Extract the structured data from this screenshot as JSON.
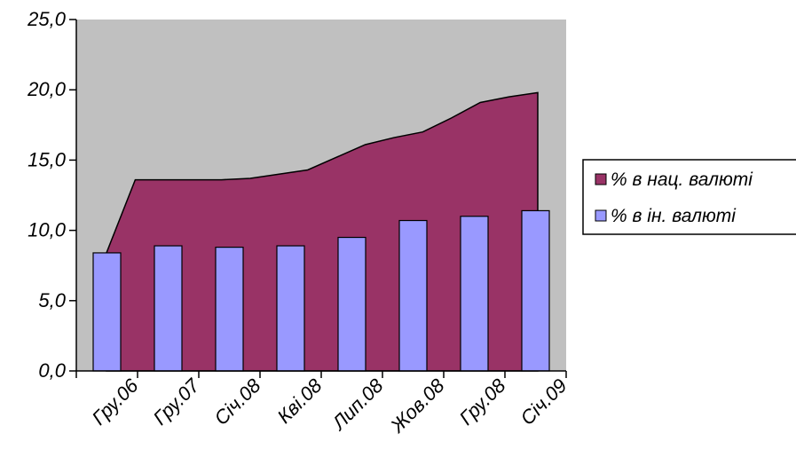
{
  "chart_data": {
    "type": "area",
    "title": "",
    "xlabel": "",
    "ylabel": "",
    "ylim": [
      0,
      25
    ],
    "y_ticks": [
      "0,0",
      "5,0",
      "10,0",
      "15,0",
      "20,0",
      "25,0"
    ],
    "x_tick_labels": [
      "Гру.06",
      "Гру.07",
      "Січ.08",
      "Кві.08",
      "Лип.08",
      "Жов.08",
      "Гру.08",
      "Січ.09"
    ],
    "grid": false,
    "legend_position": "right",
    "plot_background": "#c0c0c0",
    "series": [
      {
        "name": "% в нац. валюті",
        "type": "area",
        "color": "#993366",
        "values": [
          8.4,
          13.6,
          13.6,
          13.6,
          13.6,
          13.7,
          14.0,
          14.3,
          15.2,
          16.1,
          16.6,
          17.0,
          18.0,
          19.1,
          19.5,
          19.8
        ]
      },
      {
        "name": "% в ін. валюті",
        "type": "bar",
        "color": "#9999ff",
        "values": [
          8.4,
          8.9,
          8.8,
          8.9,
          9.5,
          10.7,
          11.0,
          11.4
        ]
      }
    ]
  }
}
